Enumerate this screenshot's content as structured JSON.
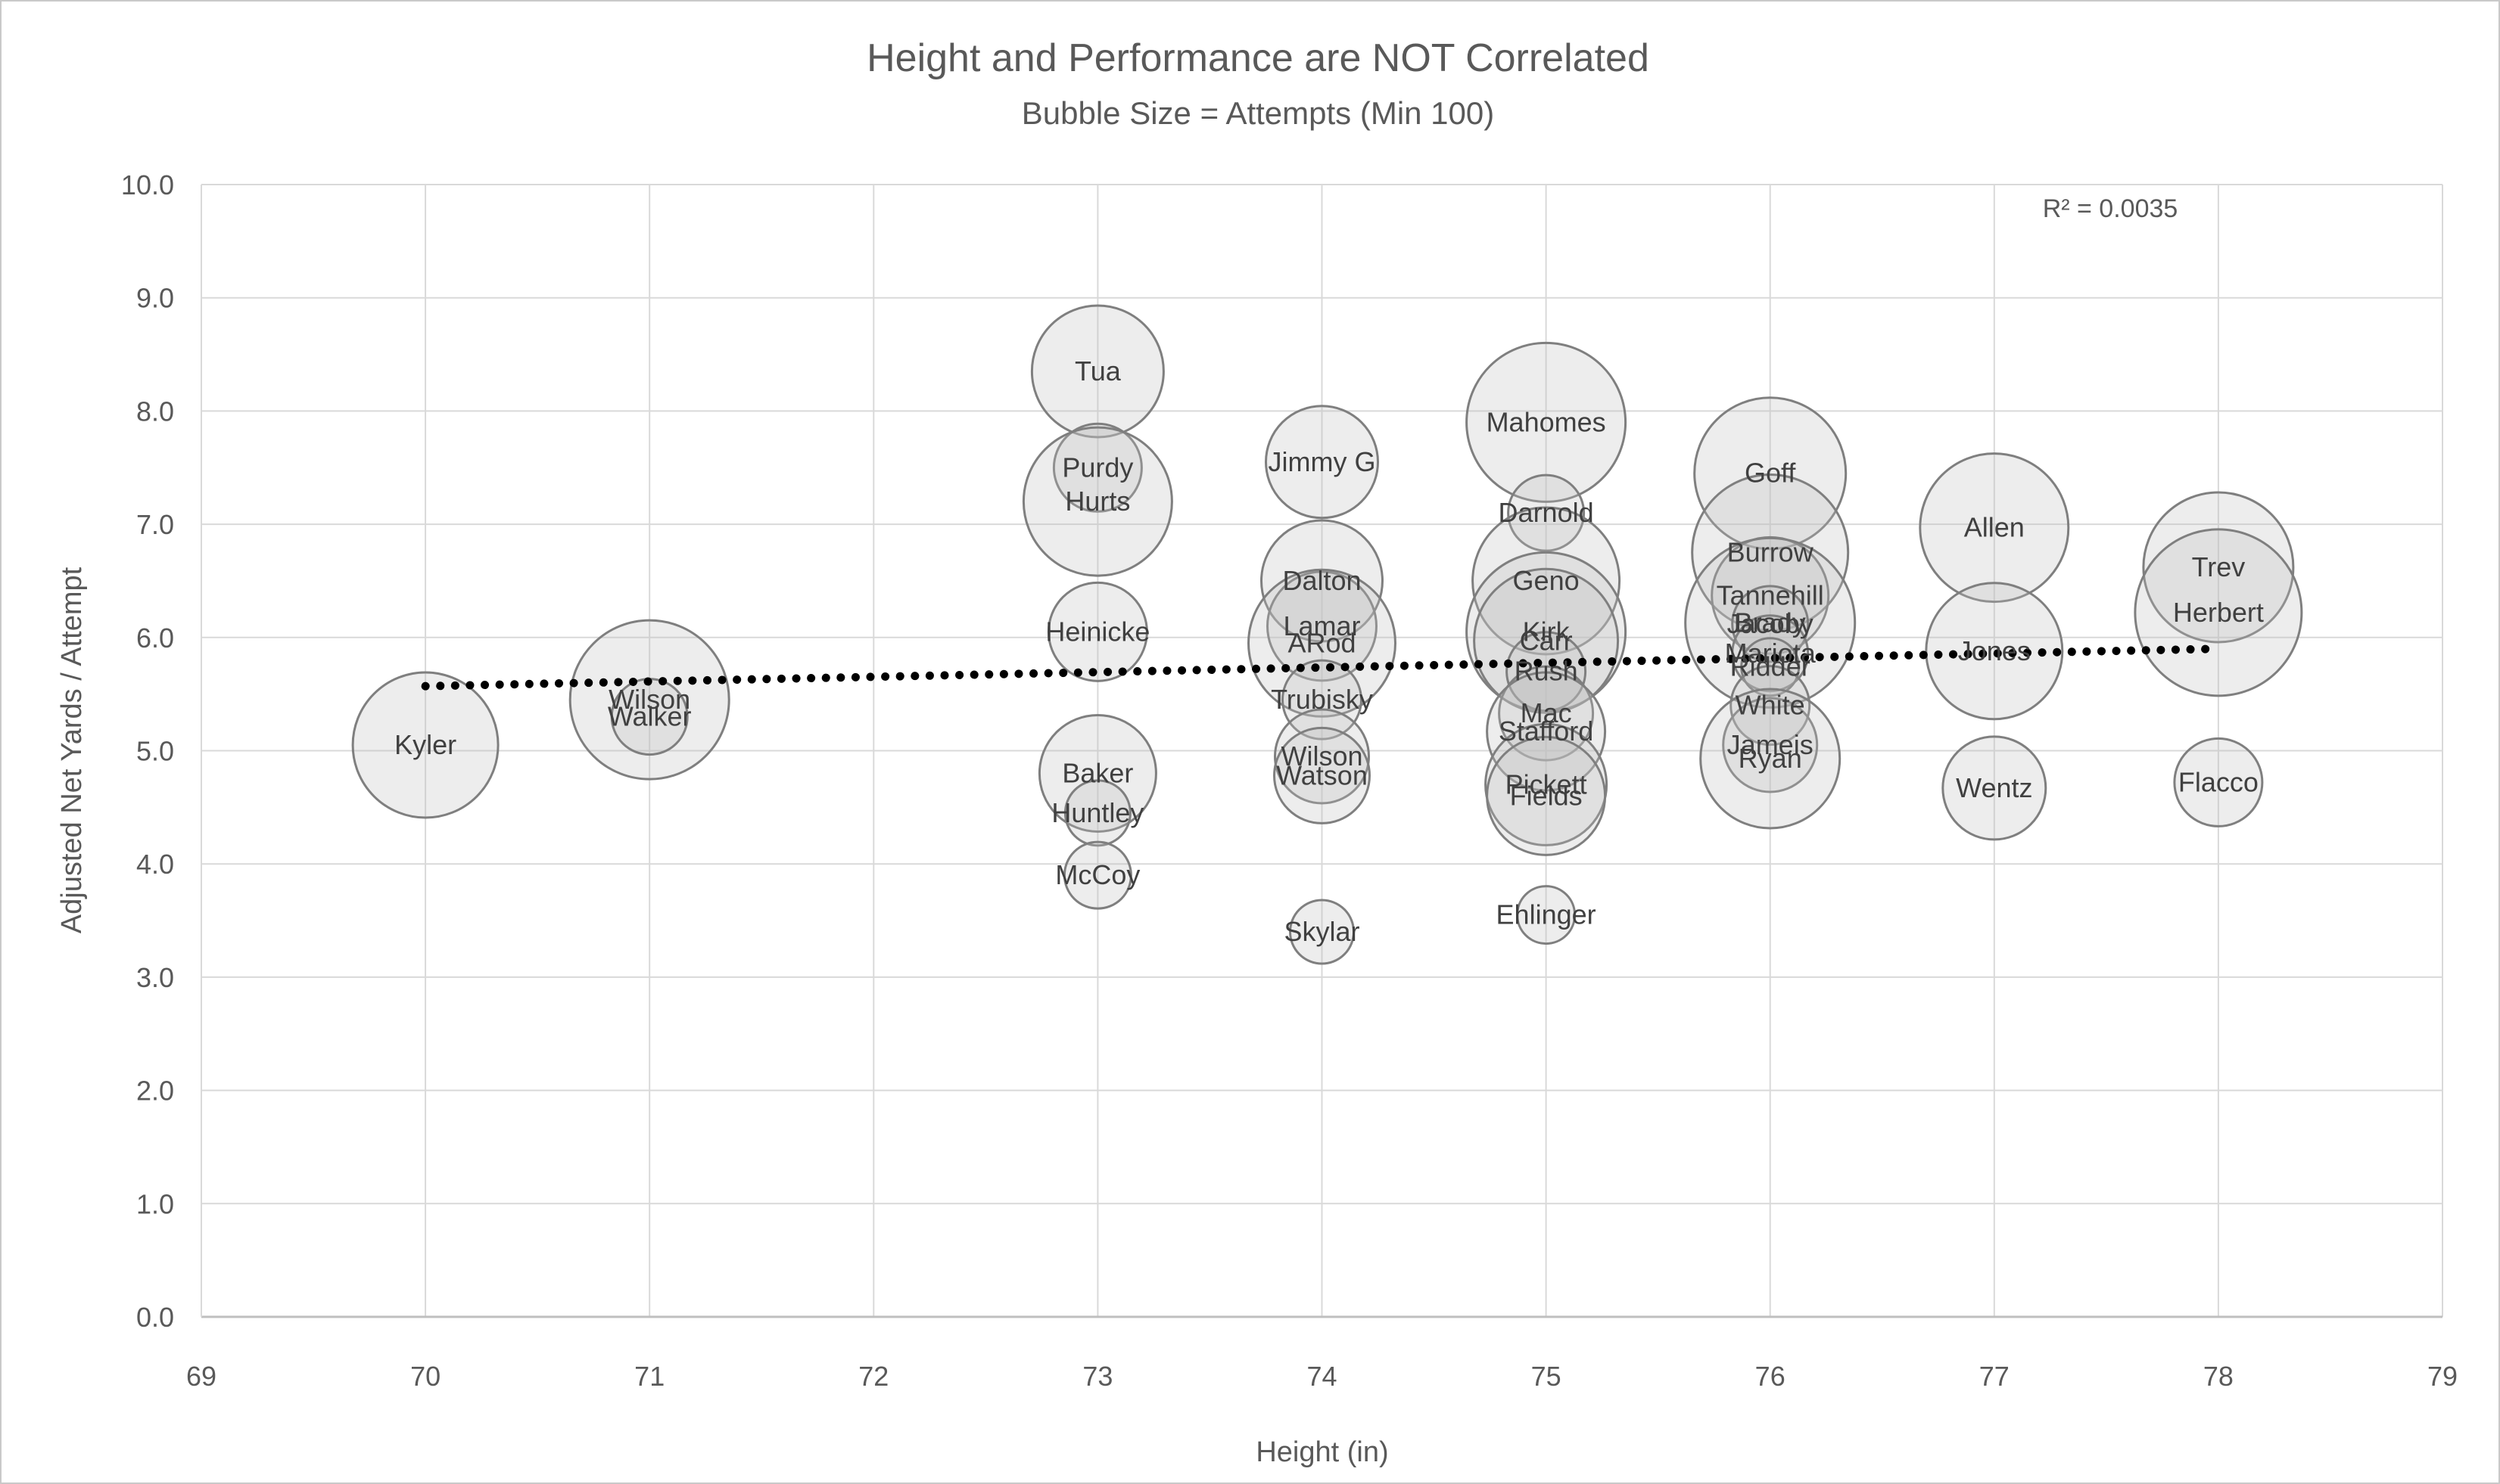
{
  "meta": {
    "title": "Height and Performance are NOT Correlated",
    "subtitle": "Bubble Size = Attempts (Min 100)",
    "r_squared_label": "R² = 0.0035"
  },
  "axes": {
    "x": {
      "label": "Height (in)",
      "min": 69,
      "max": 79,
      "ticks": [
        "69",
        "70",
        "71",
        "72",
        "73",
        "74",
        "75",
        "76",
        "77",
        "78",
        "79"
      ]
    },
    "y": {
      "label": "Adjusted Net Yards / Attempt",
      "min": 0,
      "max": 10,
      "ticks": [
        "0.0",
        "1.0",
        "2.0",
        "3.0",
        "4.0",
        "5.0",
        "6.0",
        "7.0",
        "8.0",
        "9.0",
        "10.0"
      ]
    }
  },
  "chart_data": {
    "type": "scatter",
    "subtype": "bubble",
    "title": "Height and Performance are NOT Correlated",
    "subtitle": "Bubble Size = Attempts (Min 100)",
    "xlabel": "Height (in)",
    "ylabel": "Adjusted Net Yards / Attempt",
    "xlim": [
      69,
      79
    ],
    "ylim": [
      0.0,
      10.0
    ],
    "grid": true,
    "size_encoding": "attempts (minimum 100), radius in source px",
    "r_squared": 0.0035,
    "trendline": {
      "style": "dotted",
      "x1": 70,
      "y1": 5.57,
      "x2": 78,
      "y2": 5.9
    },
    "points": [
      {
        "name": "Kyler",
        "x": 70,
        "y": 5.05,
        "r": 96
      },
      {
        "name": "Wilson",
        "x": 71,
        "y": 5.45,
        "r": 105
      },
      {
        "name": "Walker",
        "x": 71,
        "y": 5.3,
        "r": 50
      },
      {
        "name": "Tua",
        "x": 73,
        "y": 8.35,
        "r": 87
      },
      {
        "name": "Purdy",
        "x": 73,
        "y": 7.5,
        "r": 58
      },
      {
        "name": "Hurts",
        "x": 73,
        "y": 7.2,
        "r": 98
      },
      {
        "name": "Heinicke",
        "x": 73,
        "y": 6.05,
        "r": 65
      },
      {
        "name": "Baker",
        "x": 73,
        "y": 4.8,
        "r": 77
      },
      {
        "name": "Huntley",
        "x": 73,
        "y": 4.45,
        "r": 43
      },
      {
        "name": "McCoy",
        "x": 73,
        "y": 3.9,
        "r": 44
      },
      {
        "name": "Jimmy G",
        "x": 74,
        "y": 7.55,
        "r": 74
      },
      {
        "name": "Dalton",
        "x": 74,
        "y": 6.5,
        "r": 80
      },
      {
        "name": "Lamar",
        "x": 74,
        "y": 6.1,
        "r": 72
      },
      {
        "name": "ARod",
        "x": 74,
        "y": 5.95,
        "r": 97
      },
      {
        "name": "Trubisky",
        "x": 74,
        "y": 5.45,
        "r": 52
      },
      {
        "name": "Wilson",
        "x": 74,
        "y": 4.95,
        "r": 62
      },
      {
        "name": "Watson",
        "x": 74,
        "y": 4.78,
        "r": 63
      },
      {
        "name": "Skylar",
        "x": 74,
        "y": 3.4,
        "r": 42
      },
      {
        "name": "Mahomes",
        "x": 75,
        "y": 7.9,
        "r": 105
      },
      {
        "name": "Darnold",
        "x": 75,
        "y": 7.1,
        "r": 50
      },
      {
        "name": "Geno",
        "x": 75,
        "y": 6.5,
        "r": 97
      },
      {
        "name": "Kirk",
        "x": 75,
        "y": 6.05,
        "r": 105
      },
      {
        "name": "Carr",
        "x": 75,
        "y": 5.97,
        "r": 95
      },
      {
        "name": "Rush",
        "x": 75,
        "y": 5.7,
        "r": 52
      },
      {
        "name": "Mac",
        "x": 75,
        "y": 5.33,
        "r": 62
      },
      {
        "name": "Stafford",
        "x": 75,
        "y": 5.17,
        "r": 78
      },
      {
        "name": "Pickett",
        "x": 75,
        "y": 4.7,
        "r": 80
      },
      {
        "name": "Fields",
        "x": 75,
        "y": 4.6,
        "r": 78
      },
      {
        "name": "Ehlinger",
        "x": 75,
        "y": 3.55,
        "r": 38
      },
      {
        "name": "Goff",
        "x": 76,
        "y": 7.45,
        "r": 100
      },
      {
        "name": "Burrow",
        "x": 76,
        "y": 6.75,
        "r": 103
      },
      {
        "name": "Tannehill",
        "x": 76,
        "y": 6.37,
        "r": 77
      },
      {
        "name": "Brady",
        "x": 76,
        "y": 6.13,
        "r": 112
      },
      {
        "name": "Jacoby",
        "x": 76,
        "y": 6.12,
        "r": 50
      },
      {
        "name": "Mariota",
        "x": 76,
        "y": 5.86,
        "r": 50
      },
      {
        "name": "Ridder",
        "x": 76,
        "y": 5.74,
        "r": 38
      },
      {
        "name": "White",
        "x": 76,
        "y": 5.4,
        "r": 52
      },
      {
        "name": "Jameis",
        "x": 76,
        "y": 5.05,
        "r": 62
      },
      {
        "name": "Ryan",
        "x": 76,
        "y": 4.93,
        "r": 92
      },
      {
        "name": "Allen",
        "x": 77,
        "y": 6.97,
        "r": 98
      },
      {
        "name": "Jones",
        "x": 77,
        "y": 5.88,
        "r": 90
      },
      {
        "name": "Wentz",
        "x": 77,
        "y": 4.67,
        "r": 68
      },
      {
        "name": "Trev",
        "x": 78,
        "y": 6.62,
        "r": 99
      },
      {
        "name": "Herbert",
        "x": 78,
        "y": 6.22,
        "r": 110
      },
      {
        "name": "Flacco",
        "x": 78,
        "y": 4.72,
        "r": 58
      }
    ]
  },
  "colors": {
    "grid": "#d9d9d9",
    "axis_line": "#bfbfbf",
    "text": "#595959",
    "bubble_label": "#404040",
    "bubble_stroke": "#7f7f7f",
    "bubble_fill": "rgba(191,191,191,0.28)",
    "trendline": "#000000"
  }
}
